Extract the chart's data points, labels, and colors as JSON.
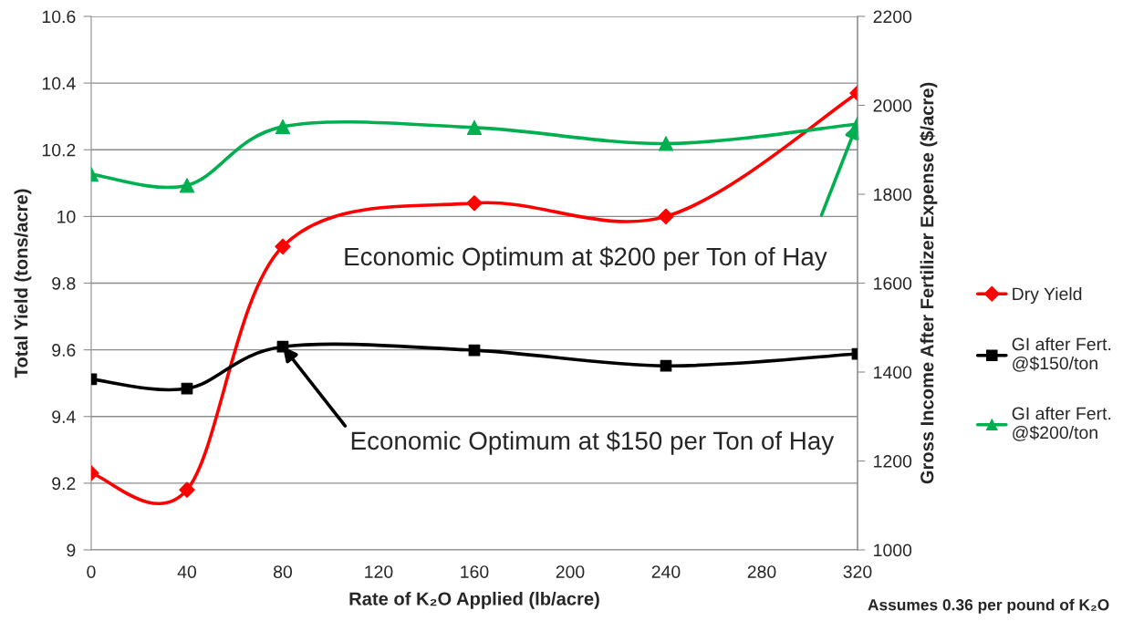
{
  "chart_data": {
    "type": "line",
    "xlabel": "Rate of K₂O Applied (lb/acre)",
    "ylabel": "Total Yield (tons/acre)",
    "y2label": "Gross Income After Fertilizer Expense ($/acre)",
    "x": [
      0,
      40,
      80,
      160,
      240,
      320
    ],
    "xlim": [
      0,
      320
    ],
    "xticks": [
      0,
      40,
      80,
      120,
      160,
      200,
      240,
      280,
      320
    ],
    "ylim": [
      9,
      10.6
    ],
    "yticks": [
      9,
      9.2,
      9.4,
      9.6,
      9.8,
      10,
      10.2,
      10.4,
      10.6
    ],
    "y2lim": [
      1000,
      2200
    ],
    "y2ticks": [
      1000,
      1200,
      1400,
      1600,
      1800,
      2000,
      2200
    ],
    "grid": "y",
    "legend": "right",
    "line_style": "solid",
    "series": [
      {
        "name": "Dry Yield",
        "color": "#ff0000",
        "marker": "diamond",
        "values": [
          9.23,
          9.18,
          9.91,
          10.04,
          10.0,
          10.37
        ]
      },
      {
        "name": "GI after Fert. @$150/ton",
        "color": "#000000",
        "marker": "square",
        "axis": "y2",
        "values": [
          1384,
          1363,
          1457,
          1449,
          1414,
          1441
        ]
      },
      {
        "name": "GI after Fert. @$200/ton",
        "color": "#00b050",
        "marker": "triangle",
        "axis": "y2",
        "values": [
          1845,
          1820,
          1952,
          1950,
          1914,
          1958
        ]
      }
    ],
    "annotations": [
      {
        "text": "Economic Optimum at $200 per Ton of Hay",
        "x": 320,
        "y": 10.28
      },
      {
        "text": "Economic Optimum at $150 per Ton of Hay",
        "x": 80,
        "y": 9.61
      },
      "Assumes 0.36 per pound of K₂O"
    ]
  }
}
